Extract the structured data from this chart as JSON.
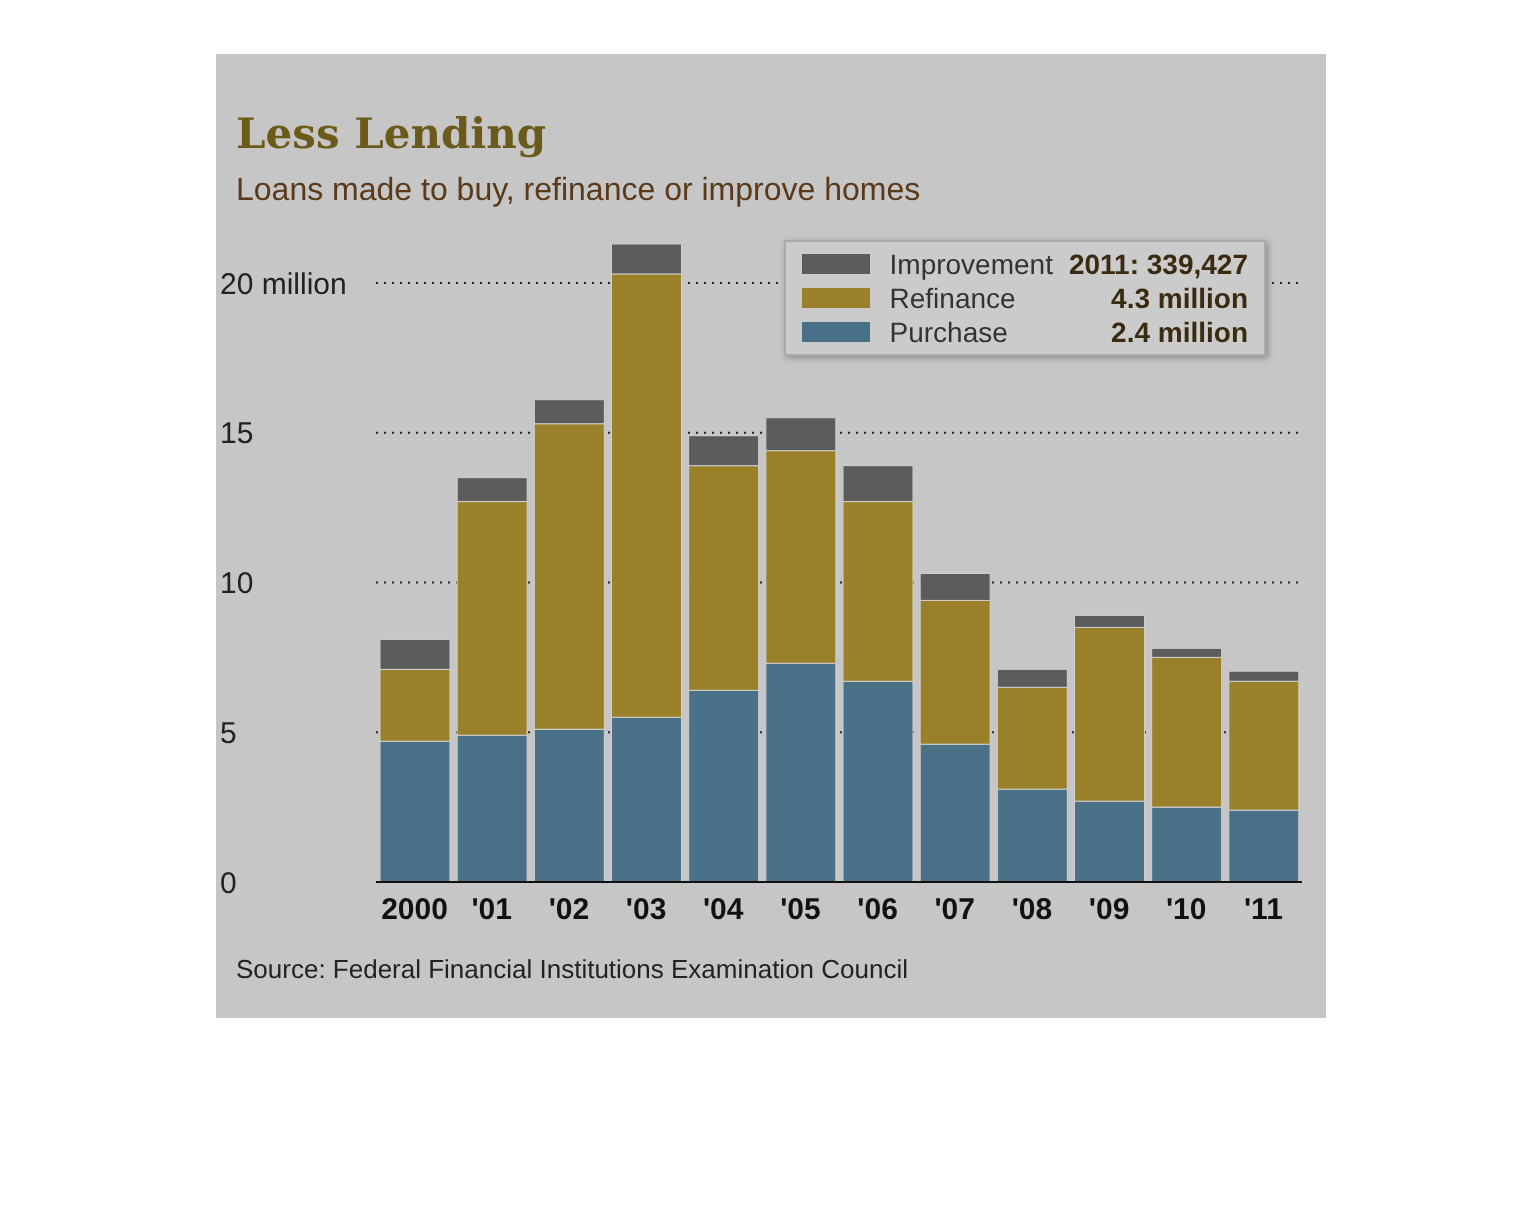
{
  "chart_data": {
    "type": "bar",
    "title": "Less Lending",
    "subtitle": "Loans made to buy, refinance or improve homes",
    "categories": [
      "2000",
      "'01",
      "'02",
      "'03",
      "'04",
      "'05",
      "'06",
      "'07",
      "'08",
      "'09",
      "'10",
      "'11"
    ],
    "stacked": true,
    "series": [
      {
        "name": "Purchase",
        "color": "#4b7189",
        "values": [
          4.7,
          4.9,
          5.1,
          5.5,
          6.4,
          7.3,
          6.7,
          4.6,
          3.1,
          2.7,
          2.5,
          2.4
        ]
      },
      {
        "name": "Refinance",
        "color": "#9a8129",
        "values": [
          2.4,
          7.8,
          10.2,
          14.8,
          7.5,
          7.1,
          6.0,
          4.8,
          3.4,
          5.8,
          5.0,
          4.3
        ]
      },
      {
        "name": "Improvement",
        "color": "#5c5c5c",
        "values": [
          1.0,
          0.8,
          0.8,
          1.0,
          1.0,
          1.1,
          1.2,
          0.9,
          0.6,
          0.4,
          0.3,
          0.34
        ]
      }
    ],
    "ylim": [
      0,
      21.5
    ],
    "yticks": [
      0,
      5,
      10,
      15,
      {
        "value": 20,
        "label": "20 million"
      }
    ],
    "grid": "y",
    "legend": "top right",
    "annotations": [
      "2.4 million",
      "4.3 million",
      "2011: 339,427",
      "Source: Federal Financial Institutions Examination Council"
    ]
  }
}
